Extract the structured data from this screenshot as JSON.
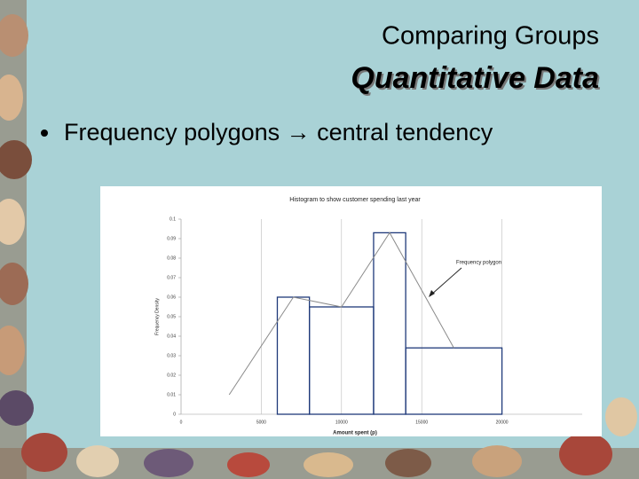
{
  "slide": {
    "title": "Comparing Groups",
    "subtitle": "Quantitative Data",
    "bullet": "Frequency polygons → central tendency"
  },
  "chart_data": {
    "type": "histogram",
    "title": "Histogram to show customer spending last year",
    "x_label": "Amount spent (p)",
    "y_label": "Frequency Density",
    "bins": [
      6000,
      8000,
      12000,
      14000,
      20000
    ],
    "values": [
      0.06,
      0.055,
      0.093,
      0.034
    ],
    "color": "#1f3a7a",
    "polygon": {
      "name": "Frequency polygon",
      "x": [
        3000,
        7000,
        10000,
        13000,
        17000
      ],
      "y": [
        0.01,
        0.06,
        0.055,
        0.093,
        0.034
      ],
      "color": "#8a8a8a"
    },
    "xlim": [
      0,
      25000
    ],
    "xticks": [
      0,
      5000,
      10000,
      15000,
      20000
    ],
    "ylim": [
      0,
      0.1
    ],
    "yticks": [
      0,
      0.01,
      0.02,
      0.03,
      0.04,
      0.05,
      0.06,
      0.07,
      0.08,
      0.09,
      0.1
    ],
    "grid": "x"
  }
}
